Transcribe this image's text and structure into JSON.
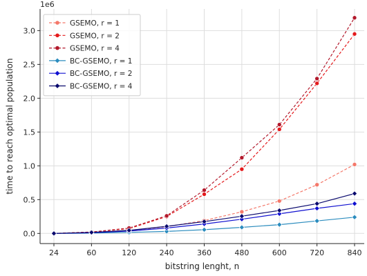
{
  "chart_data": {
    "type": "line",
    "xlabel": "bitstring lenght, n",
    "ylabel": "time to reach optimal population",
    "y_offset_label": "1e6",
    "categories": [
      "24",
      "60",
      "120",
      "240",
      "360",
      "480",
      "600",
      "720",
      "840"
    ],
    "ylim": [
      -0.15,
      3.32
    ],
    "yticks": [
      0.0,
      0.5,
      1.0,
      1.5,
      2.0,
      2.5,
      3.0
    ],
    "ytick_labels": [
      "0.0",
      "0.5",
      "1.0",
      "1.5",
      "2.0",
      "2.5",
      "3.0"
    ],
    "grid": true,
    "legend_position": "top-left",
    "series": [
      {
        "name": "GSEMO, r = 1",
        "color": "#f4786a",
        "dashed": true,
        "marker": "circle",
        "values": [
          0.0,
          0.01,
          0.04,
          0.1,
          0.19,
          0.32,
          0.48,
          0.72,
          1.02
        ]
      },
      {
        "name": "GSEMO, r = 2",
        "color": "#e41a1c",
        "dashed": true,
        "marker": "circle",
        "values": [
          0.0,
          0.02,
          0.07,
          0.25,
          0.58,
          0.95,
          1.54,
          2.22,
          2.95
        ]
      },
      {
        "name": "GSEMO, r = 4",
        "color": "#b2182b",
        "dashed": true,
        "marker": "circle",
        "values": [
          0.0,
          0.02,
          0.08,
          0.26,
          0.64,
          1.12,
          1.61,
          2.29,
          3.19
        ]
      },
      {
        "name": "BC-GSEMO, r = 1",
        "color": "#2b8cbe",
        "dashed": false,
        "marker": "diamond",
        "values": [
          0.0,
          0.005,
          0.015,
          0.03,
          0.055,
          0.09,
          0.13,
          0.185,
          0.24
        ]
      },
      {
        "name": "BC-GSEMO, r = 2",
        "color": "#1010d0",
        "dashed": false,
        "marker": "diamond",
        "values": [
          0.0,
          0.01,
          0.035,
          0.08,
          0.14,
          0.21,
          0.29,
          0.37,
          0.44
        ]
      },
      {
        "name": "BC-GSEMO, r = 4",
        "color": "#0a0a6e",
        "dashed": false,
        "marker": "diamond",
        "values": [
          0.0,
          0.015,
          0.045,
          0.105,
          0.175,
          0.255,
          0.34,
          0.44,
          0.59
        ]
      }
    ]
  }
}
